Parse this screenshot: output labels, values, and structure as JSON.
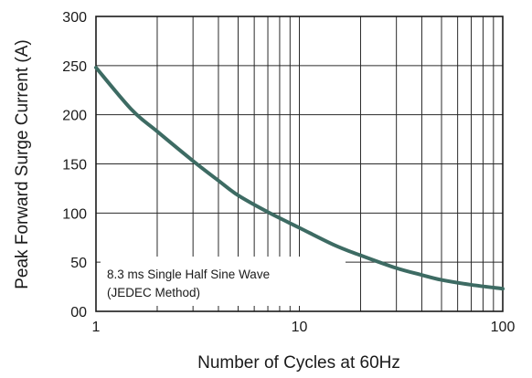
{
  "chart_data": {
    "type": "line",
    "title": "",
    "xlabel": "Number of Cycles at 60Hz",
    "ylabel": "Peak Forward Surge Current (A)",
    "x_scale": "log",
    "xlim": [
      1,
      100
    ],
    "ylim": [
      0,
      300
    ],
    "x_ticks": [
      1,
      10,
      100
    ],
    "x_tick_labels": [
      "1",
      "10",
      "100"
    ],
    "y_ticks": [
      0,
      50,
      100,
      150,
      200,
      250,
      300
    ],
    "y_tick_labels": [
      "00",
      "50",
      "100",
      "150",
      "200",
      "250",
      "300"
    ],
    "grid": true,
    "annotation": {
      "line1": "8.3 ms Single Half Sine Wave",
      "line2": "(JEDEC Method)"
    },
    "series": [
      {
        "name": "",
        "color": "#3d6b63",
        "x": [
          1,
          1.5,
          2,
          3,
          4,
          5,
          7,
          10,
          15,
          20,
          30,
          40,
          50,
          70,
          100
        ],
        "y": [
          248,
          205,
          183,
          153,
          133,
          118,
          101,
          85,
          67,
          57,
          44,
          37,
          32,
          27,
          23
        ]
      }
    ]
  }
}
